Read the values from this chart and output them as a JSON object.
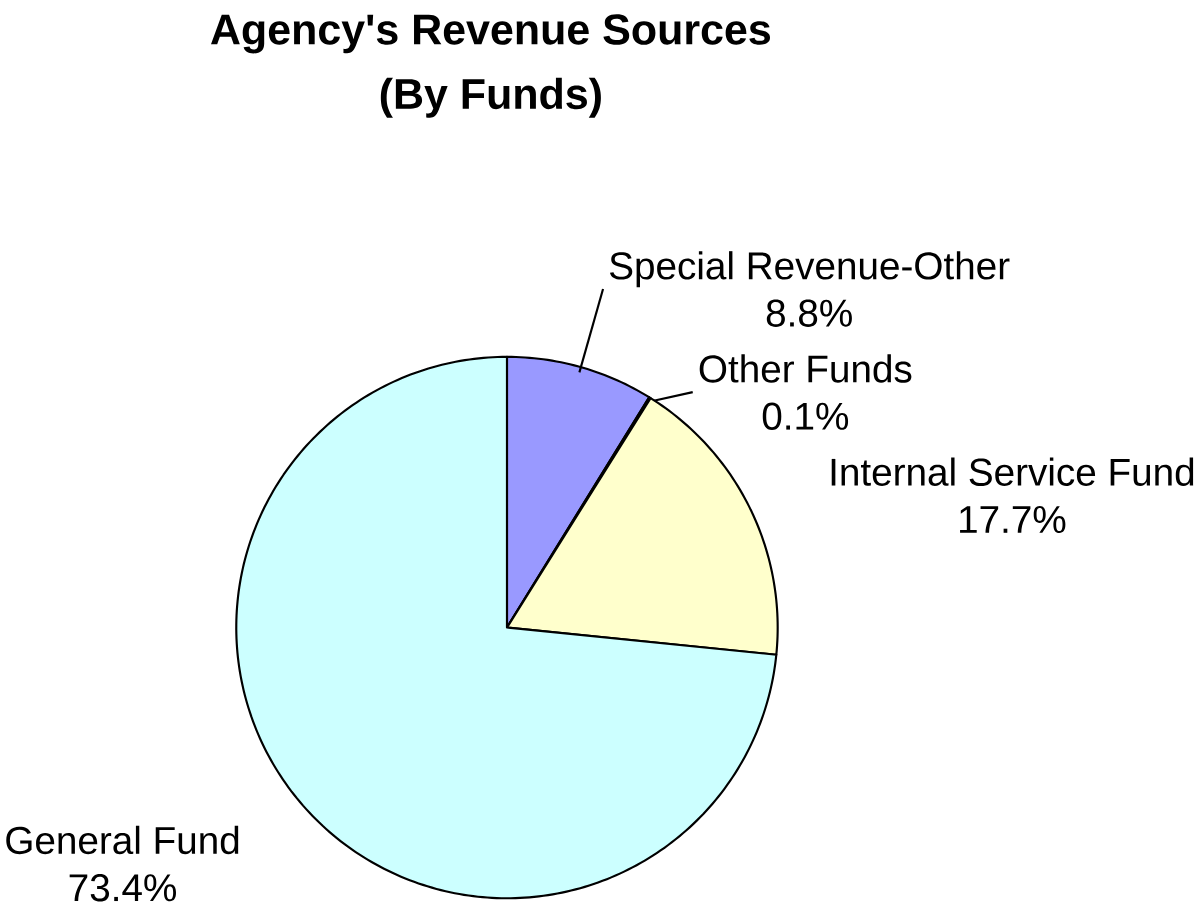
{
  "chart_data": {
    "type": "pie",
    "title": "Agency's Revenue Sources",
    "subtitle": "(By Funds)",
    "categories": [
      "Special Revenue-Other",
      "Other Funds",
      "Internal Service Fund",
      "General Fund"
    ],
    "values": [
      8.8,
      0.1,
      17.7,
      73.4
    ],
    "colors": [
      "#9999ff",
      "#993366",
      "#ffffcc",
      "#ccffff"
    ],
    "value_labels": [
      "8.8%",
      "0.1%",
      "17.7%",
      "73.4%"
    ]
  }
}
